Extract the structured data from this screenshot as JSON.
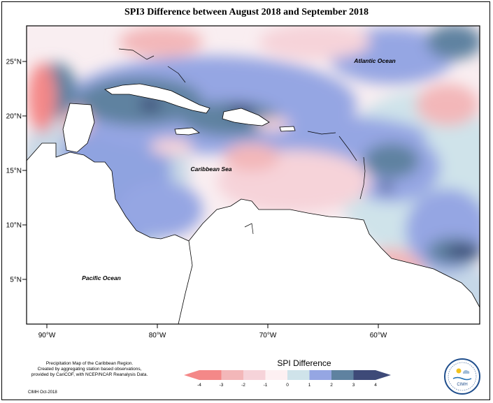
{
  "title": "SPI3 Difference between August 2018 and September 2018",
  "axes": {
    "lon_ticks": [
      {
        "value": -90,
        "label": "90°W"
      },
      {
        "value": -80,
        "label": "80°W"
      },
      {
        "value": -70,
        "label": "70°W"
      },
      {
        "value": -60,
        "label": "60°W"
      }
    ],
    "lat_ticks": [
      {
        "value": 25,
        "label": "25°N"
      },
      {
        "value": 20,
        "label": "20°N"
      },
      {
        "value": 15,
        "label": "15°N"
      },
      {
        "value": 10,
        "label": "10°N"
      },
      {
        "value": 5,
        "label": "5°N"
      }
    ]
  },
  "ocean_labels": {
    "atlantic": "Atlantic Ocean",
    "caribbean": "Caribbean Sea",
    "pacific": "Pacific Ocean"
  },
  "legend": {
    "title": "SPI Difference",
    "ticks": [
      "-4",
      "-3",
      "-2",
      "-1",
      "0",
      "1",
      "2",
      "3",
      "4"
    ],
    "colors": {
      "-4_-3": "#f48888",
      "-3_-2": "#f3b7b9",
      "-2_-1": "#f6d3d9",
      "-1_0": "#fdf0f2",
      "0_1": "#cfe3ea",
      "1_2": "#95a6e3",
      "2_3": "#5f82a0",
      "3_4": "#3e4a78"
    }
  },
  "credit": {
    "line1": "Precipitation Map of the Caribbean Region.",
    "line2": "Created by aggregating station based observations,",
    "line3": "provided by CariCOF, with NCEP/NCAR Reanalysis Data.",
    "date": "CIMH Oct-2018"
  },
  "logo": {
    "text": "CIMH",
    "icon": "cimh-logo-icon"
  }
}
